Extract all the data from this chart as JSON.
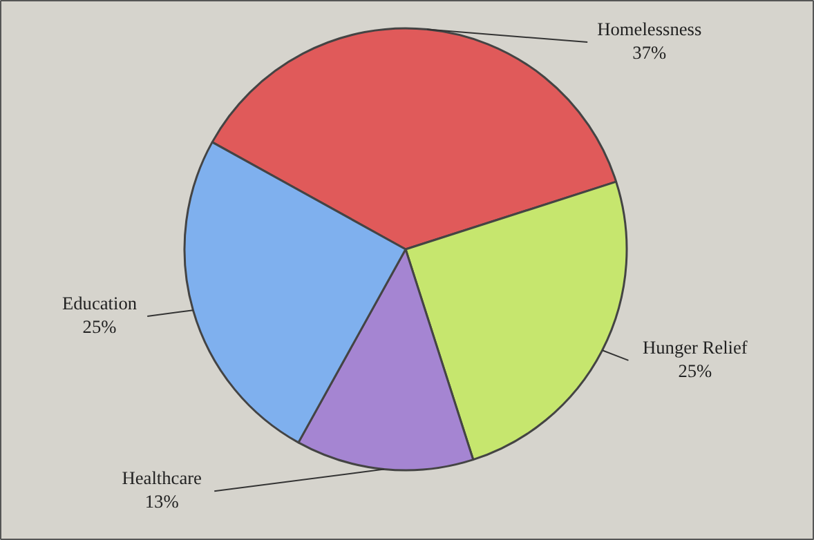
{
  "chart_data": {
    "type": "pie",
    "categories": [
      "Homelessness",
      "Hunger Relief",
      "Healthcare",
      "Education"
    ],
    "values": [
      37,
      25,
      13,
      25
    ],
    "colors": [
      "#e05a5a",
      "#c6e66e",
      "#a585d2",
      "#7fb0ee"
    ],
    "value_labels": [
      "37%",
      "25%",
      "13%",
      "25%"
    ]
  }
}
